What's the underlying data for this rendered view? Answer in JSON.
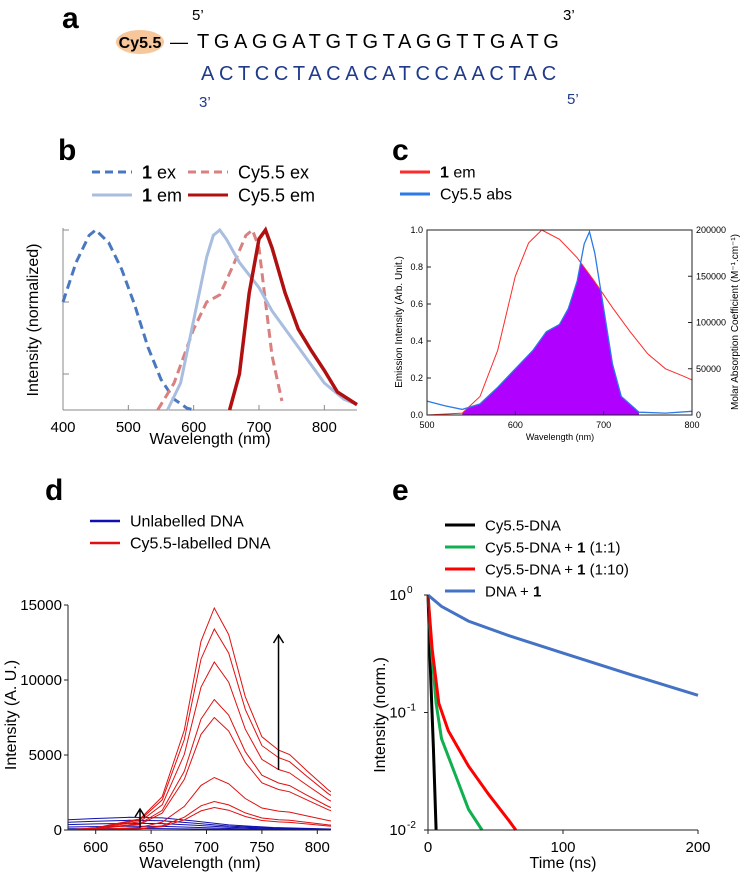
{
  "panel_a": {
    "label": "a",
    "top_5prime": "5’",
    "top_3prime": "3’",
    "dye": "Cy5.5",
    "linker": "—",
    "top_strand": "TGAGGATGTGTAGGTTGATG",
    "bottom_strand": "ACTCCTACACATCCAACTAC",
    "bottom_3prime": "3’",
    "bottom_5prime": "5’",
    "dye_color": "#f7c69a",
    "bottom_color": "#1f3a8a"
  },
  "chart_data": [
    {
      "panel": "b",
      "type": "line",
      "xlabel": "Wavelength (nm)",
      "ylabel": "Intensity (normalized)",
      "xlim": [
        400,
        850
      ],
      "ylim": [
        0,
        1.0
      ],
      "xticks": [
        400,
        500,
        600,
        700,
        800
      ],
      "legend_placement": "top",
      "series": [
        {
          "name_bold": "1",
          "name": " ex",
          "color": "#4a78c0",
          "dash": true,
          "points": [
            [
              400,
              0.6
            ],
            [
              420,
              0.82
            ],
            [
              440,
              0.97
            ],
            [
              450,
              1.0
            ],
            [
              470,
              0.93
            ],
            [
              490,
              0.78
            ],
            [
              510,
              0.58
            ],
            [
              530,
              0.35
            ],
            [
              550,
              0.17
            ],
            [
              570,
              0.06
            ],
            [
              590,
              0.01
            ],
            [
              600,
              0
            ]
          ]
        },
        {
          "name_bold": "",
          "name": "Cy5.5 ex",
          "color": "#d98080",
          "dash": true,
          "points": [
            [
              545,
              0
            ],
            [
              570,
              0.15
            ],
            [
              600,
              0.45
            ],
            [
              620,
              0.6
            ],
            [
              640,
              0.64
            ],
            [
              660,
              0.8
            ],
            [
              680,
              0.97
            ],
            [
              690,
              1.0
            ],
            [
              700,
              0.9
            ],
            [
              710,
              0.6
            ],
            [
              720,
              0.3
            ],
            [
              735,
              0.05
            ]
          ]
        },
        {
          "name_bold": "1",
          "name": " em",
          "color": "#a8bde0",
          "dash": false,
          "points": [
            [
              560,
              0
            ],
            [
              580,
              0.15
            ],
            [
              600,
              0.5
            ],
            [
              620,
              0.85
            ],
            [
              630,
              0.97
            ],
            [
              640,
              1.0
            ],
            [
              650,
              0.95
            ],
            [
              670,
              0.82
            ],
            [
              700,
              0.68
            ],
            [
              720,
              0.55
            ],
            [
              750,
              0.4
            ],
            [
              780,
              0.25
            ],
            [
              800,
              0.15
            ],
            [
              830,
              0.06
            ],
            [
              850,
              0.03
            ]
          ]
        },
        {
          "name_bold": "",
          "name": "Cy5.5 em",
          "color": "#b01010",
          "dash": false,
          "points": [
            [
              655,
              0
            ],
            [
              670,
              0.2
            ],
            [
              685,
              0.65
            ],
            [
              700,
              0.95
            ],
            [
              710,
              1.0
            ],
            [
              720,
              0.9
            ],
            [
              740,
              0.65
            ],
            [
              760,
              0.45
            ],
            [
              780,
              0.33
            ],
            [
              800,
              0.22
            ],
            [
              820,
              0.1
            ],
            [
              850,
              0.03
            ]
          ]
        }
      ]
    },
    {
      "panel": "c",
      "type": "area",
      "xlabel": "Wavelength (nm)",
      "ylabel": "Emission Intensity (Arb. Unit.)",
      "ylabel_right": "Molar Absorption Coefficient (M⁻¹.cm⁻¹)",
      "xlim": [
        500,
        800
      ],
      "ylim": [
        0,
        1.0
      ],
      "ylim_right": [
        0,
        200000
      ],
      "xticks": [
        500,
        600,
        700,
        800
      ],
      "yticks": [
        "0.0",
        "0.2",
        "0.4",
        "0.6",
        "0.8",
        "1.0"
      ],
      "yticks_right": [
        0,
        50000,
        100000,
        150000,
        200000
      ],
      "overlap_fill_color": "#b000ff",
      "legend_placement": "top",
      "series": [
        {
          "name_bold": "1",
          "name": " em",
          "color": "#ff2a2a",
          "axis": "left",
          "points": [
            [
              500,
              0
            ],
            [
              540,
              0.01
            ],
            [
              560,
              0.1
            ],
            [
              580,
              0.35
            ],
            [
              600,
              0.75
            ],
            [
              615,
              0.93
            ],
            [
              630,
              1.0
            ],
            [
              650,
              0.95
            ],
            [
              670,
              0.85
            ],
            [
              690,
              0.72
            ],
            [
              710,
              0.58
            ],
            [
              730,
              0.45
            ],
            [
              750,
              0.33
            ],
            [
              770,
              0.25
            ],
            [
              790,
              0.21
            ],
            [
              800,
              0.19
            ]
          ]
        },
        {
          "name_bold": "",
          "name": "Cy5.5 abs",
          "color": "#2a7ae8",
          "axis": "right",
          "points": [
            [
              500,
              15000
            ],
            [
              520,
              10000
            ],
            [
              540,
              6000
            ],
            [
              560,
              12000
            ],
            [
              580,
              30000
            ],
            [
              600,
              50000
            ],
            [
              620,
              70000
            ],
            [
              635,
              90000
            ],
            [
              650,
              98000
            ],
            [
              660,
              115000
            ],
            [
              670,
              145000
            ],
            [
              678,
              185000
            ],
            [
              684,
              198000
            ],
            [
              690,
              175000
            ],
            [
              700,
              115000
            ],
            [
              710,
              55000
            ],
            [
              720,
              20000
            ],
            [
              740,
              3000
            ],
            [
              770,
              2000
            ],
            [
              800,
              4000
            ]
          ]
        }
      ]
    },
    {
      "panel": "d",
      "type": "line",
      "xlabel": "Wavelength (nm)",
      "ylabel": "Intensity (A. U.)",
      "xlim": [
        575,
        825
      ],
      "ylim": [
        0,
        15000
      ],
      "xticks": [
        600,
        650,
        700,
        750,
        800
      ],
      "yticks": [
        0,
        5000,
        10000,
        15000
      ],
      "legend_placement": "top",
      "legend": [
        {
          "name": "Unlabelled DNA",
          "color": "#1010b0"
        },
        {
          "name": "Cy5.5-labelled DNA",
          "color": "#e01010"
        }
      ],
      "red_shape": [
        [
          575,
          0.0
        ],
        [
          600,
          0.01
        ],
        [
          640,
          0.05
        ],
        [
          660,
          0.15
        ],
        [
          680,
          0.45
        ],
        [
          695,
          0.85
        ],
        [
          707,
          1.0
        ],
        [
          720,
          0.88
        ],
        [
          735,
          0.6
        ],
        [
          750,
          0.42
        ],
        [
          765,
          0.36
        ],
        [
          775,
          0.34
        ],
        [
          790,
          0.27
        ],
        [
          810,
          0.18
        ],
        [
          825,
          0.13
        ]
      ],
      "red_peaks": [
        14800,
        13400,
        11200,
        8700,
        7500,
        3500,
        1900,
        1500
      ],
      "blue_shape": [
        [
          575,
          0.8
        ],
        [
          600,
          0.9
        ],
        [
          630,
          1.0
        ],
        [
          660,
          0.95
        ],
        [
          690,
          0.7
        ],
        [
          720,
          0.4
        ],
        [
          760,
          0.2
        ],
        [
          825,
          0.05
        ]
      ],
      "blue_peaks": [
        850,
        650,
        450,
        250,
        100
      ],
      "arrows": [
        [
          640,
          150,
          1400
        ],
        [
          765,
          4000,
          13000
        ]
      ]
    },
    {
      "panel": "e",
      "type": "line",
      "yscale": "log",
      "xlabel": "Time (ns)",
      "ylabel": "Intensity (norm.)",
      "xlim": [
        0,
        200
      ],
      "ylim": [
        0.01,
        1
      ],
      "xticks": [
        0,
        100,
        200
      ],
      "yticks": [
        {
          "value": 0.01,
          "base": "10",
          "exp": "-2"
        },
        {
          "value": 0.1,
          "base": "10",
          "exp": "-1"
        },
        {
          "value": 1,
          "base": "10",
          "exp": "0"
        }
      ],
      "legend_placement": "top-right",
      "series": [
        {
          "name_bold": "",
          "name": "Cy5.5-DNA",
          "suffix": "",
          "color": "#000000",
          "points": [
            [
              0,
              1
            ],
            [
              2,
              0.2
            ],
            [
              4,
              0.05
            ],
            [
              6,
              0.01
            ]
          ]
        },
        {
          "name_bold": "1",
          "name": "Cy5.5-DNA + ",
          "suffix": " (1:1)",
          "color": "#10b050",
          "points": [
            [
              0,
              1
            ],
            [
              3,
              0.3
            ],
            [
              6,
              0.12
            ],
            [
              10,
              0.06
            ],
            [
              20,
              0.03
            ],
            [
              30,
              0.015
            ],
            [
              40,
              0.01
            ]
          ]
        },
        {
          "name_bold": "1",
          "name": "Cy5.5-DNA + ",
          "suffix": " (1:10)",
          "color": "#ff0000",
          "points": [
            [
              0,
              1
            ],
            [
              3,
              0.35
            ],
            [
              8,
              0.12
            ],
            [
              15,
              0.07
            ],
            [
              30,
              0.035
            ],
            [
              45,
              0.02
            ],
            [
              60,
              0.012
            ],
            [
              65,
              0.01
            ]
          ]
        },
        {
          "name_bold": "1",
          "name": "DNA + ",
          "suffix": "",
          "color": "#4472c4",
          "points": [
            [
              0,
              1
            ],
            [
              10,
              0.8
            ],
            [
              30,
              0.6
            ],
            [
              60,
              0.45
            ],
            [
              100,
              0.32
            ],
            [
              150,
              0.21
            ],
            [
              200,
              0.14
            ]
          ]
        }
      ]
    }
  ],
  "panel_labels": [
    "b",
    "c",
    "d",
    "e"
  ]
}
